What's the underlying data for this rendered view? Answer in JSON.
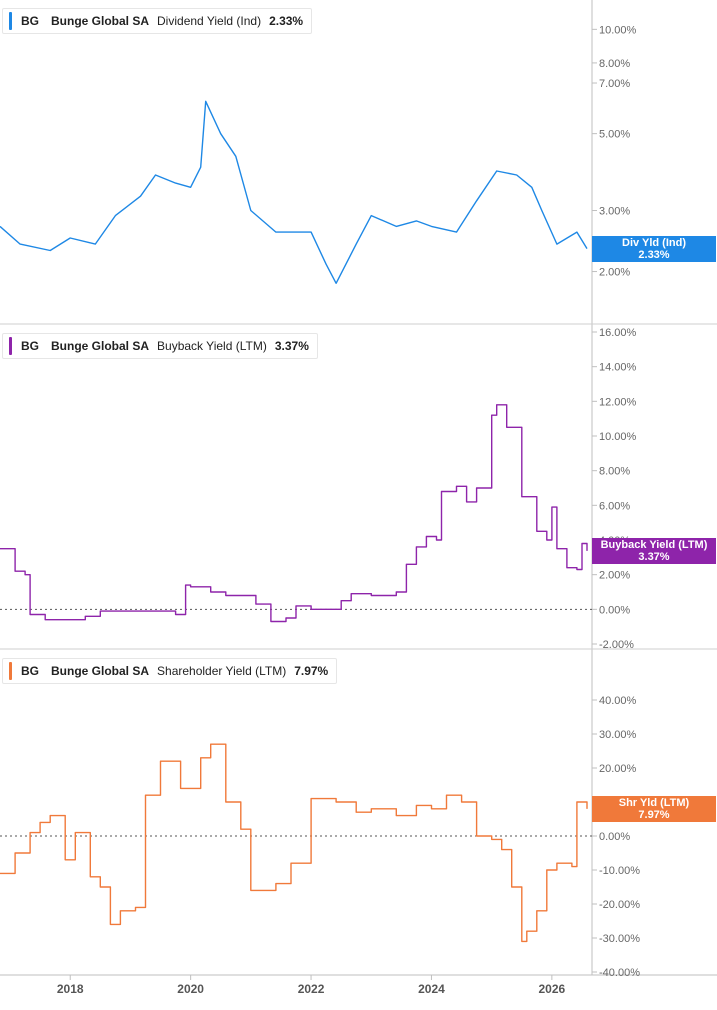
{
  "ticker": "BG",
  "company": "Bunge Global SA",
  "x_axis_ticks": [
    "2018",
    "2020",
    "2022",
    "2024",
    "2026"
  ],
  "colors": {
    "dividend": "#1e88e5",
    "buyback": "#8e24aa",
    "shareholder": "#f0793a",
    "grid": "#d9d9d9",
    "axis_text": "#666666"
  },
  "panels": [
    {
      "metric": "Dividend Yield (Ind)",
      "value": "2.33%",
      "badge_label": "Div Yld (Ind)",
      "badge_value": "2.33%"
    },
    {
      "metric": "Buyback Yield (LTM)",
      "value": "3.37%",
      "badge_label": "Buyback Yield (LTM)",
      "badge_value": "3.37%"
    },
    {
      "metric": "Shareholder Yield (LTM)",
      "value": "7.97%",
      "badge_label": "Shr Yld (LTM)",
      "badge_value": "7.97%"
    }
  ],
  "chart_data": [
    {
      "type": "line",
      "title": "BG Bunge Global SA Dividend Yield (Ind) 2.33%",
      "y_scale": "log",
      "ylim": [
        1.7,
        11
      ],
      "y_ticks": [
        2,
        3,
        5,
        7,
        8,
        10
      ],
      "y_tick_labels": [
        "2.00%",
        "3.00%",
        "5.00%",
        "7.00%",
        "8.00%",
        "10.00%"
      ],
      "xlim": [
        "2016-11",
        "2026-09"
      ],
      "series": [
        {
          "x": [
            "2016-11",
            "2017-03",
            "2017-09",
            "2018-01",
            "2018-06",
            "2018-10",
            "2019-03",
            "2019-06",
            "2019-10",
            "2020-01",
            "2020-03",
            "2020-04",
            "2020-07",
            "2020-10",
            "2021-01",
            "2021-06",
            "2021-10",
            "2022-01",
            "2022-04",
            "2022-06",
            "2022-10",
            "2023-01",
            "2023-06",
            "2023-10",
            "2024-01",
            "2024-06",
            "2024-10",
            "2025-02",
            "2025-06",
            "2025-09",
            "2025-11",
            "2026-02",
            "2026-06",
            "2026-08"
          ],
          "values": [
            2.7,
            2.4,
            2.3,
            2.5,
            2.4,
            2.9,
            3.3,
            3.8,
            3.6,
            3.5,
            4.0,
            6.2,
            5.0,
            4.3,
            3.0,
            2.6,
            2.6,
            2.6,
            2.1,
            1.85,
            2.4,
            2.9,
            2.7,
            2.8,
            2.7,
            2.6,
            3.2,
            3.9,
            3.8,
            3.5,
            3.0,
            2.4,
            2.6,
            2.33
          ]
        }
      ]
    },
    {
      "type": "line",
      "title": "BG Bunge Global SA Buyback Yield (LTM) 3.37%",
      "ylim": [
        -2,
        16
      ],
      "y_ticks": [
        -2,
        0,
        2,
        4,
        6,
        8,
        10,
        12,
        14,
        16
      ],
      "y_tick_labels": [
        "-2.00%",
        "0.00%",
        "2.00%",
        "4.00%",
        "6.00%",
        "8.00%",
        "10.00%",
        "12.00%",
        "14.00%",
        "16.00%"
      ],
      "xlim": [
        "2016-11",
        "2026-09"
      ],
      "series": [
        {
          "x": [
            "2016-11",
            "2017-02",
            "2017-04",
            "2017-05",
            "2017-08",
            "2018-04",
            "2018-07",
            "2019-10",
            "2019-12",
            "2020-01",
            "2020-05",
            "2020-08",
            "2021-02",
            "2021-05",
            "2021-08",
            "2021-10",
            "2022-01",
            "2022-07",
            "2022-09",
            "2023-01",
            "2023-06",
            "2023-08",
            "2023-10",
            "2023-12",
            "2024-02",
            "2024-03",
            "2024-06",
            "2024-08",
            "2024-10",
            "2025-01",
            "2025-02",
            "2025-04",
            "2025-07",
            "2025-10",
            "2025-12",
            "2026-01",
            "2026-02",
            "2026-04",
            "2026-06",
            "2026-07",
            "2026-08"
          ],
          "values": [
            3.5,
            2.2,
            2.0,
            -0.3,
            -0.6,
            -0.4,
            -0.1,
            -0.3,
            1.4,
            1.3,
            1.0,
            0.8,
            0.3,
            -0.7,
            -0.5,
            0.2,
            0.0,
            0.5,
            0.9,
            0.8,
            1.0,
            2.6,
            3.6,
            4.2,
            4.0,
            6.8,
            7.1,
            6.2,
            7.0,
            11.2,
            11.8,
            10.5,
            6.5,
            4.5,
            4.0,
            5.9,
            3.5,
            2.4,
            2.3,
            3.8,
            3.37
          ]
        }
      ]
    },
    {
      "type": "line",
      "title": "BG Bunge Global SA Shareholder Yield (LTM) 7.97%",
      "ylim": [
        -40,
        50
      ],
      "y_ticks": [
        -40,
        -30,
        -20,
        -10,
        0,
        10,
        20,
        30,
        40
      ],
      "y_tick_labels": [
        "-40.00%",
        "-30.00%",
        "-20.00%",
        "-10.00%",
        "0.00%",
        "10.00%",
        "20.00%",
        "30.00%",
        "40.00%"
      ],
      "xlim": [
        "2016-11",
        "2026-09"
      ],
      "series": [
        {
          "x": [
            "2016-11",
            "2017-02",
            "2017-05",
            "2017-07",
            "2017-09",
            "2017-12",
            "2018-02",
            "2018-05",
            "2018-07",
            "2018-09",
            "2018-11",
            "2019-02",
            "2019-04",
            "2019-07",
            "2019-11",
            "2020-03",
            "2020-05",
            "2020-08",
            "2020-11",
            "2021-01",
            "2021-06",
            "2021-09",
            "2022-01",
            "2022-06",
            "2022-10",
            "2023-01",
            "2023-06",
            "2023-10",
            "2024-01",
            "2024-04",
            "2024-07",
            "2024-10",
            "2025-01",
            "2025-03",
            "2025-05",
            "2025-07",
            "2025-08",
            "2025-10",
            "2025-12",
            "2026-02",
            "2026-05",
            "2026-06",
            "2026-08"
          ],
          "values": [
            -11,
            -5,
            1,
            4,
            6,
            -7,
            1,
            -12,
            -15,
            -26,
            -22,
            -21,
            12,
            22,
            14,
            23,
            27,
            10,
            2,
            -16,
            -14,
            -8,
            11,
            10,
            7,
            8,
            6,
            9,
            8,
            12,
            10,
            0,
            -1,
            -4,
            -15,
            -31,
            -28,
            -22,
            -10,
            -8,
            -9,
            10,
            7.97
          ]
        }
      ]
    }
  ]
}
